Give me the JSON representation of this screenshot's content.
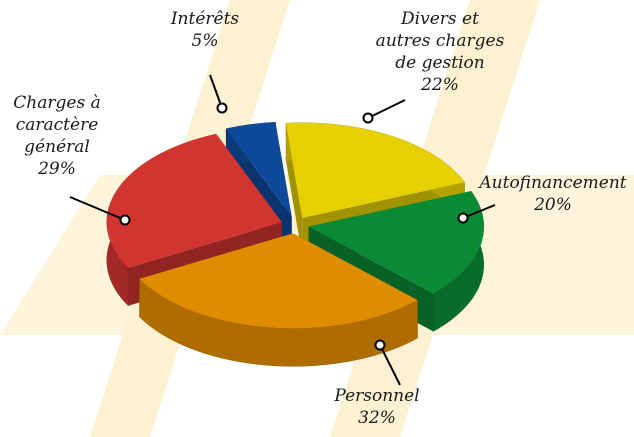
{
  "chart_data": {
    "type": "pie",
    "categories": [
      "Intérêts",
      "Divers et\nautres charges\nde gestion",
      "Autofinancement",
      "Personnel",
      "Charges à\ncaractère\ngénéral"
    ],
    "values": [
      5,
      22,
      20,
      32,
      29
    ],
    "value_labels": [
      "5%",
      "22%",
      "20%",
      "32%",
      "29%"
    ],
    "colors": [
      "#0d4a9c",
      "#e6d000",
      "#0b8a36",
      "#e08c00",
      "#d03530"
    ]
  }
}
